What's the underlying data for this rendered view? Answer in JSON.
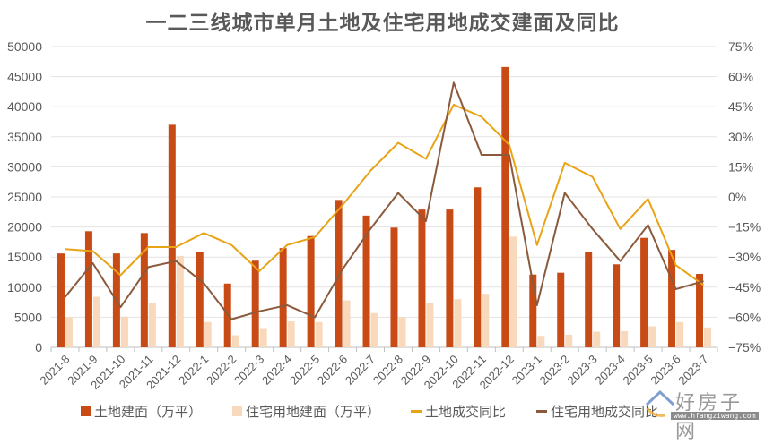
{
  "title": "一二三线城市单月土地及住宅用地成交建面及同比",
  "chart_data": {
    "type": "bar",
    "title": "一二三线城市单月土地及住宅用地成交建面及同比",
    "xlabel": "",
    "ylabel": "",
    "ylim": [
      0,
      50000
    ],
    "y2lim": [
      -75,
      75
    ],
    "grid": true,
    "legend_position": "bottom",
    "left_ticks": [
      "50000",
      "45000",
      "40000",
      "35000",
      "30000",
      "25000",
      "20000",
      "15000",
      "10000",
      "5000",
      "0"
    ],
    "right_ticks": [
      "75%",
      "60%",
      "45%",
      "30%",
      "15%",
      "0%",
      "−15%",
      "−30%",
      "−45%",
      "−60%",
      "−75%"
    ],
    "categories": [
      "2021-8",
      "2021-9",
      "2021-10",
      "2021-11",
      "2021-12",
      "2022-1",
      "2022-2",
      "2022-3",
      "2022-4",
      "2022-5",
      "2022-6",
      "2022-7",
      "2022-8",
      "2022-9",
      "2022-10",
      "2022-11",
      "2022-12",
      "2023-1",
      "2023-2",
      "2023-3",
      "2023-4",
      "2023-5",
      "2023-6",
      "2023-7"
    ],
    "series": [
      {
        "name": "土地建面（万平）",
        "type": "bar",
        "axis": "left",
        "color": "#C84B16",
        "values": [
          15600,
          19300,
          15600,
          19000,
          37000,
          15900,
          10600,
          14400,
          16500,
          18500,
          24500,
          21900,
          19900,
          22900,
          22900,
          26600,
          46600,
          12100,
          12400,
          15900,
          13800,
          18200,
          16200,
          12200
        ]
      },
      {
        "name": "住宅用地建面（万平）",
        "type": "bar",
        "axis": "left",
        "color": "#F8D9BC",
        "values": [
          5000,
          8400,
          5100,
          7300,
          15200,
          4200,
          2000,
          3200,
          4300,
          4200,
          7800,
          5700,
          5000,
          7300,
          8000,
          8900,
          18400,
          1900,
          2100,
          2600,
          2700,
          3500,
          4200,
          3300
        ]
      },
      {
        "name": "土地成交同比",
        "type": "line",
        "axis": "right",
        "unit": "%",
        "color": "#E8A317",
        "values": [
          -26,
          -27,
          -39,
          -25,
          -25,
          -18,
          -24,
          -37,
          -24,
          -20,
          -4,
          13,
          27,
          19,
          46,
          40,
          26,
          -24,
          17,
          10,
          -16,
          -1,
          -34,
          -44
        ]
      },
      {
        "name": "住宅用地成交同比",
        "type": "line",
        "axis": "right",
        "unit": "%",
        "color": "#8B5A3C",
        "values": [
          -50,
          -33,
          -55,
          -35,
          -32,
          -43,
          -61,
          -57,
          -54,
          -60,
          -36,
          -16,
          2,
          -12,
          57,
          21,
          21,
          -54,
          2,
          -16,
          -32,
          -14,
          -46,
          -42
        ]
      }
    ]
  },
  "legend": [
    {
      "label": "土地建面（万平）",
      "color": "#C84B16",
      "kind": "rect"
    },
    {
      "label": "住宅用地建面（万平）",
      "color": "#F8D9BC",
      "kind": "rect"
    },
    {
      "label": "土地成交同比",
      "color": "#E8A317",
      "kind": "line"
    },
    {
      "label": "住宅用地成交同比",
      "color": "#8B5A3C",
      "kind": "line"
    }
  ],
  "watermark": {
    "text": "好房子网",
    "url": "www.hfangziwang.com"
  }
}
